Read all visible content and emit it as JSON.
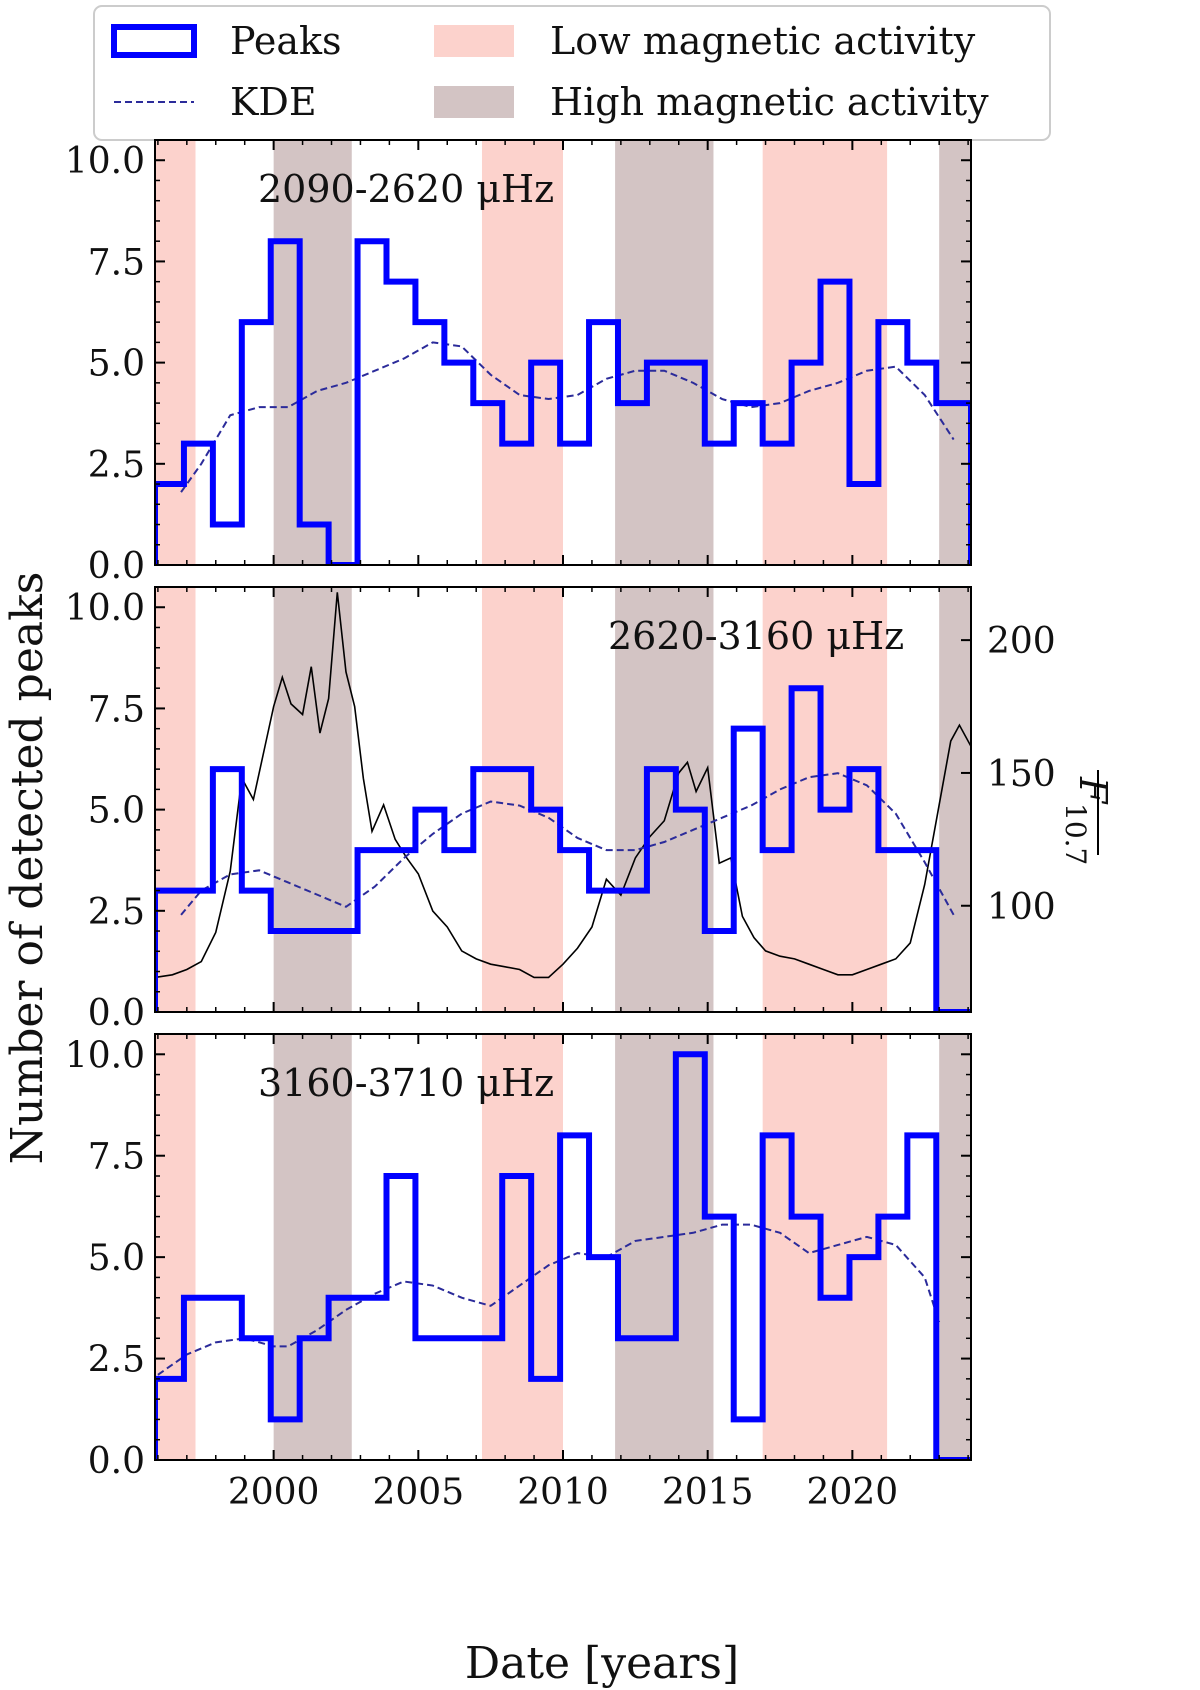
{
  "legend": {
    "items": [
      {
        "label": "Peaks",
        "kind": "step"
      },
      {
        "label": "KDE",
        "kind": "dashed"
      },
      {
        "label": "Low magnetic activity",
        "kind": "span-low"
      },
      {
        "label": "High magnetic activity",
        "kind": "span-high"
      }
    ]
  },
  "colors": {
    "peaks": "#0000ff",
    "kde": "#2b2b9a",
    "flux": "#000000",
    "low": "#fcd2cc",
    "high": "#d3c4c4"
  },
  "chart_data": {
    "type": "step",
    "xlabel": "Date [years]",
    "ylabel": "Number of detected peaks",
    "right_ylabel": "F̄ 10.7",
    "xlim": [
      1995.9,
      2024.1
    ],
    "ylim": [
      0,
      10.5
    ],
    "xticks": [
      2000,
      2005,
      2010,
      2015,
      2020
    ],
    "yticks": [
      0.0,
      2.5,
      5.0,
      7.5,
      10.0
    ],
    "ytick_labels": [
      "0.0",
      "2.5",
      "5.0",
      "7.5",
      "10.0"
    ],
    "low_activity_spans": [
      [
        1995.9,
        1997.3
      ],
      [
        2007.2,
        2010.0
      ],
      [
        2016.9,
        2021.2
      ]
    ],
    "high_activity_spans": [
      [
        2000.0,
        2002.7
      ],
      [
        2011.8,
        2015.2
      ],
      [
        2023.0,
        2024.1
      ]
    ],
    "bin_edges": [
      1995.9,
      1996.9,
      1997.9,
      1998.9,
      1999.9,
      2000.9,
      2001.9,
      2002.9,
      2003.9,
      2004.9,
      2005.9,
      2006.9,
      2007.9,
      2008.9,
      2009.9,
      2010.9,
      2011.9,
      2012.9,
      2013.9,
      2014.9,
      2015.9,
      2016.9,
      2017.9,
      2018.9,
      2019.9,
      2020.9,
      2021.9,
      2022.9,
      2024.1
    ],
    "panels": [
      {
        "label": "2090-2620 μHz",
        "counts": [
          2,
          3,
          1,
          6,
          8,
          1,
          0,
          8,
          7,
          6,
          5,
          4,
          3,
          5,
          3,
          6,
          4,
          5,
          5,
          3,
          4,
          3,
          5,
          7,
          2,
          6,
          5,
          4
        ],
        "kde": {
          "x": [
            1996.8,
            1997.5,
            1998.5,
            1999.5,
            2000.5,
            2001.5,
            2002.5,
            2003.5,
            2004.5,
            2005.5,
            2006.5,
            2007.5,
            2008.5,
            2009.5,
            2010.5,
            2011.5,
            2012.5,
            2013.5,
            2014.5,
            2015.5,
            2016.5,
            2017.5,
            2018.5,
            2019.5,
            2020.5,
            2021.5,
            2022.5,
            2023.5
          ],
          "y": [
            1.8,
            2.5,
            3.7,
            3.9,
            3.9,
            4.3,
            4.5,
            4.8,
            5.1,
            5.5,
            5.4,
            4.7,
            4.2,
            4.1,
            4.2,
            4.6,
            4.8,
            4.8,
            4.5,
            4.1,
            3.9,
            4.0,
            4.3,
            4.5,
            4.8,
            4.9,
            4.2,
            3.1
          ]
        }
      },
      {
        "label": "2620-3160 μHz",
        "counts": [
          3,
          3,
          6,
          3,
          2,
          2,
          2,
          4,
          4,
          5,
          4,
          6,
          6,
          5,
          4,
          3,
          3,
          6,
          5,
          2,
          7,
          4,
          8,
          5,
          6,
          4,
          4,
          0
        ],
        "kde": {
          "x": [
            1996.8,
            1997.5,
            1998.5,
            1999.5,
            2000.5,
            2001.5,
            2002.5,
            2003.5,
            2004.5,
            2005.5,
            2006.5,
            2007.5,
            2008.5,
            2009.5,
            2010.5,
            2011.5,
            2012.5,
            2013.5,
            2014.5,
            2015.5,
            2016.5,
            2017.5,
            2018.5,
            2019.5,
            2020.5,
            2021.5,
            2022.5,
            2023.5
          ],
          "y": [
            2.4,
            3.0,
            3.4,
            3.5,
            3.2,
            2.9,
            2.6,
            3.1,
            3.8,
            4.4,
            4.9,
            5.2,
            5.1,
            4.8,
            4.3,
            4.0,
            4.0,
            4.2,
            4.5,
            4.8,
            5.1,
            5.5,
            5.8,
            5.9,
            5.6,
            4.9,
            3.7,
            2.4
          ]
        },
        "flux": {
          "axis_range": [
            60,
            220
          ],
          "yticks": [
            100,
            150,
            200
          ],
          "x": [
            1995.9,
            1996.5,
            1997.0,
            1997.5,
            1998.0,
            1998.5,
            1998.9,
            1999.3,
            1999.7,
            2000.0,
            2000.3,
            2000.6,
            2001.0,
            2001.3,
            2001.6,
            2001.9,
            2002.2,
            2002.5,
            2002.8,
            2003.1,
            2003.4,
            2003.8,
            2004.2,
            2004.6,
            2005.0,
            2005.5,
            2006.0,
            2006.5,
            2007.0,
            2007.5,
            2008.0,
            2008.5,
            2009.0,
            2009.5,
            2010.0,
            2010.5,
            2011.0,
            2011.5,
            2012.0,
            2012.5,
            2013.0,
            2013.5,
            2014.0,
            2014.3,
            2014.6,
            2015.0,
            2015.4,
            2015.8,
            2016.2,
            2016.6,
            2017.0,
            2017.5,
            2018.0,
            2018.5,
            2019.0,
            2019.5,
            2020.0,
            2020.5,
            2021.0,
            2021.5,
            2022.0,
            2022.5,
            2023.0,
            2023.4,
            2023.7,
            2024.1
          ],
          "y": [
            73,
            74,
            76,
            79,
            90,
            113,
            148,
            140,
            160,
            175,
            186,
            176,
            172,
            190,
            165,
            178,
            218,
            188,
            175,
            148,
            128,
            138,
            125,
            118,
            112,
            98,
            92,
            83,
            80,
            78,
            77,
            76,
            73,
            73,
            78,
            84,
            92,
            110,
            104,
            118,
            126,
            132,
            150,
            154,
            143,
            152,
            116,
            118,
            96,
            88,
            83,
            81,
            80,
            78,
            76,
            74,
            74,
            76,
            78,
            80,
            86,
            108,
            138,
            162,
            168,
            160
          ]
        }
      },
      {
        "label": "3160-3710 μHz",
        "counts": [
          2,
          4,
          4,
          3,
          1,
          3,
          4,
          4,
          7,
          3,
          3,
          3,
          7,
          2,
          8,
          5,
          3,
          3,
          10,
          6,
          1,
          8,
          6,
          4,
          5,
          6,
          8,
          0
        ],
        "kde": {
          "x": [
            1996.0,
            1997.0,
            1998.0,
            1999.0,
            2000.0,
            2000.5,
            2001.5,
            2002.5,
            2003.5,
            2004.5,
            2005.5,
            2006.5,
            2007.5,
            2008.5,
            2009.5,
            2010.5,
            2011.5,
            2012.5,
            2013.5,
            2014.5,
            2015.5,
            2016.5,
            2017.5,
            2018.5,
            2019.5,
            2020.5,
            2021.5,
            2022.5,
            2023.0
          ],
          "y": [
            2.1,
            2.6,
            2.9,
            3.0,
            2.8,
            2.8,
            3.2,
            3.7,
            4.1,
            4.4,
            4.3,
            4.0,
            3.8,
            4.3,
            4.8,
            5.1,
            5.0,
            5.4,
            5.5,
            5.6,
            5.8,
            5.8,
            5.6,
            5.1,
            5.3,
            5.5,
            5.3,
            4.5,
            3.4
          ]
        }
      }
    ]
  }
}
